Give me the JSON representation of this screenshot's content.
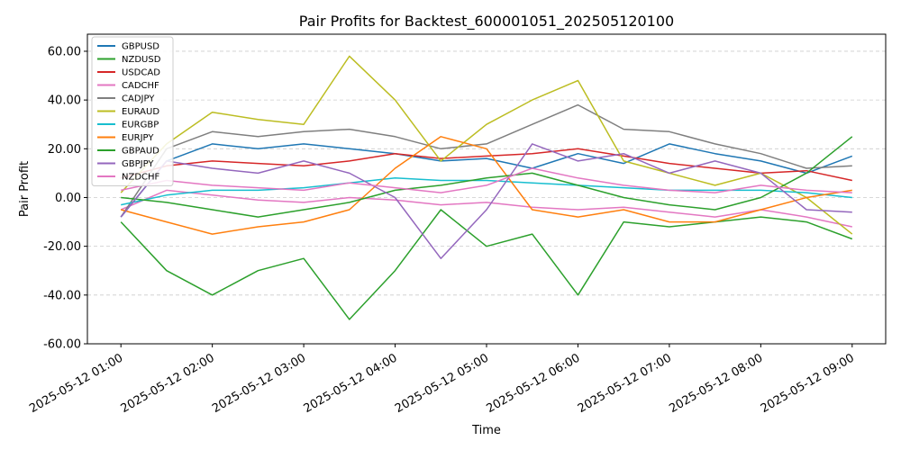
{
  "chart_data": {
    "type": "line",
    "title": "Pair Profits for Backtest_600001051_202505120100",
    "xlabel": "Time",
    "ylabel": "Pair Profit",
    "ylim": [
      -60,
      67
    ],
    "y_ticks": [
      -60,
      -40,
      -20,
      0,
      20,
      40,
      60
    ],
    "y_tick_labels": [
      "-60.00",
      "-40.00",
      "-20.00",
      "0.00",
      "20.00",
      "40.00",
      "60.00"
    ],
    "x_range": [
      "2025-05-12 00:38",
      "2025-05-12 09:22"
    ],
    "x_ticks": [
      "2025-05-12 01:00",
      "2025-05-12 02:00",
      "2025-05-12 03:00",
      "2025-05-12 04:00",
      "2025-05-12 05:00",
      "2025-05-12 06:00",
      "2025-05-12 07:00",
      "2025-05-12 08:00",
      "2025-05-12 09:00"
    ],
    "grid": "y-dashed",
    "legend_position": "top-left",
    "x": [
      "2025-05-12 01:00",
      "2025-05-12 01:30",
      "2025-05-12 02:00",
      "2025-05-12 02:30",
      "2025-05-12 03:00",
      "2025-05-12 03:30",
      "2025-05-12 04:00",
      "2025-05-12 04:30",
      "2025-05-12 05:00",
      "2025-05-12 05:30",
      "2025-05-12 06:00",
      "2025-05-12 06:30",
      "2025-05-12 07:00",
      "2025-05-12 07:30",
      "2025-05-12 08:00",
      "2025-05-12 08:30",
      "2025-05-12 09:00"
    ],
    "series": [
      {
        "name": "GBPUSD",
        "color": "#1f77b4",
        "values": [
          -8,
          15,
          22,
          20,
          22,
          20,
          18,
          15,
          16,
          12,
          18,
          14,
          22,
          18,
          15,
          10,
          17
        ]
      },
      {
        "name": "NZDUSD",
        "color": "#2ca02c",
        "values": [
          -10,
          -30,
          -40,
          -30,
          -25,
          -50,
          -30,
          -5,
          -20,
          -15,
          -40,
          -10,
          -12,
          -10,
          -8,
          -10,
          -17
        ]
      },
      {
        "name": "USDCAD",
        "color": "#d62728",
        "values": [
          8,
          13,
          15,
          14,
          13,
          15,
          18,
          16,
          17,
          18,
          20,
          17,
          14,
          12,
          10,
          11,
          7
        ]
      },
      {
        "name": "CADCHF",
        "color": "#e377c2",
        "values": [
          -5,
          3,
          1,
          -1,
          -2,
          0,
          -1,
          -3,
          -2,
          -4,
          -5,
          -4,
          -6,
          -8,
          -5,
          -8,
          -12
        ]
      },
      {
        "name": "CADJPY",
        "color": "#7f7f7f",
        "values": [
          -8,
          20,
          27,
          25,
          27,
          28,
          25,
          20,
          22,
          30,
          38,
          28,
          27,
          22,
          18,
          12,
          13
        ]
      },
      {
        "name": "EURAUD",
        "color": "#bcbd22",
        "values": [
          2,
          22,
          35,
          32,
          30,
          58,
          40,
          15,
          30,
          40,
          48,
          15,
          10,
          5,
          10,
          0,
          -15
        ]
      },
      {
        "name": "EURGBP",
        "color": "#17becf",
        "values": [
          -3,
          1,
          3,
          3,
          4,
          6,
          8,
          7,
          7,
          6,
          5,
          4,
          3,
          3,
          3,
          2,
          0
        ]
      },
      {
        "name": "EURJPY",
        "color": "#ff7f0e",
        "values": [
          -5,
          -10,
          -15,
          -12,
          -10,
          -5,
          12,
          25,
          20,
          -5,
          -8,
          -5,
          -10,
          -10,
          -5,
          0,
          3
        ]
      },
      {
        "name": "GBPAUD",
        "color": "#2ca02c",
        "values": [
          0,
          -2,
          -5,
          -8,
          -5,
          -2,
          3,
          5,
          8,
          10,
          5,
          0,
          -3,
          -5,
          0,
          10,
          25
        ]
      },
      {
        "name": "GBPJPY",
        "color": "#9467bd",
        "values": [
          -8,
          15,
          12,
          10,
          15,
          10,
          0,
          -25,
          -5,
          22,
          15,
          18,
          10,
          15,
          10,
          -5,
          -6
        ]
      },
      {
        "name": "NZDCHF",
        "color": "#e377c2",
        "values": [
          3,
          7,
          5,
          4,
          3,
          6,
          4,
          2,
          5,
          12,
          8,
          5,
          3,
          2,
          5,
          3,
          2
        ]
      }
    ]
  }
}
